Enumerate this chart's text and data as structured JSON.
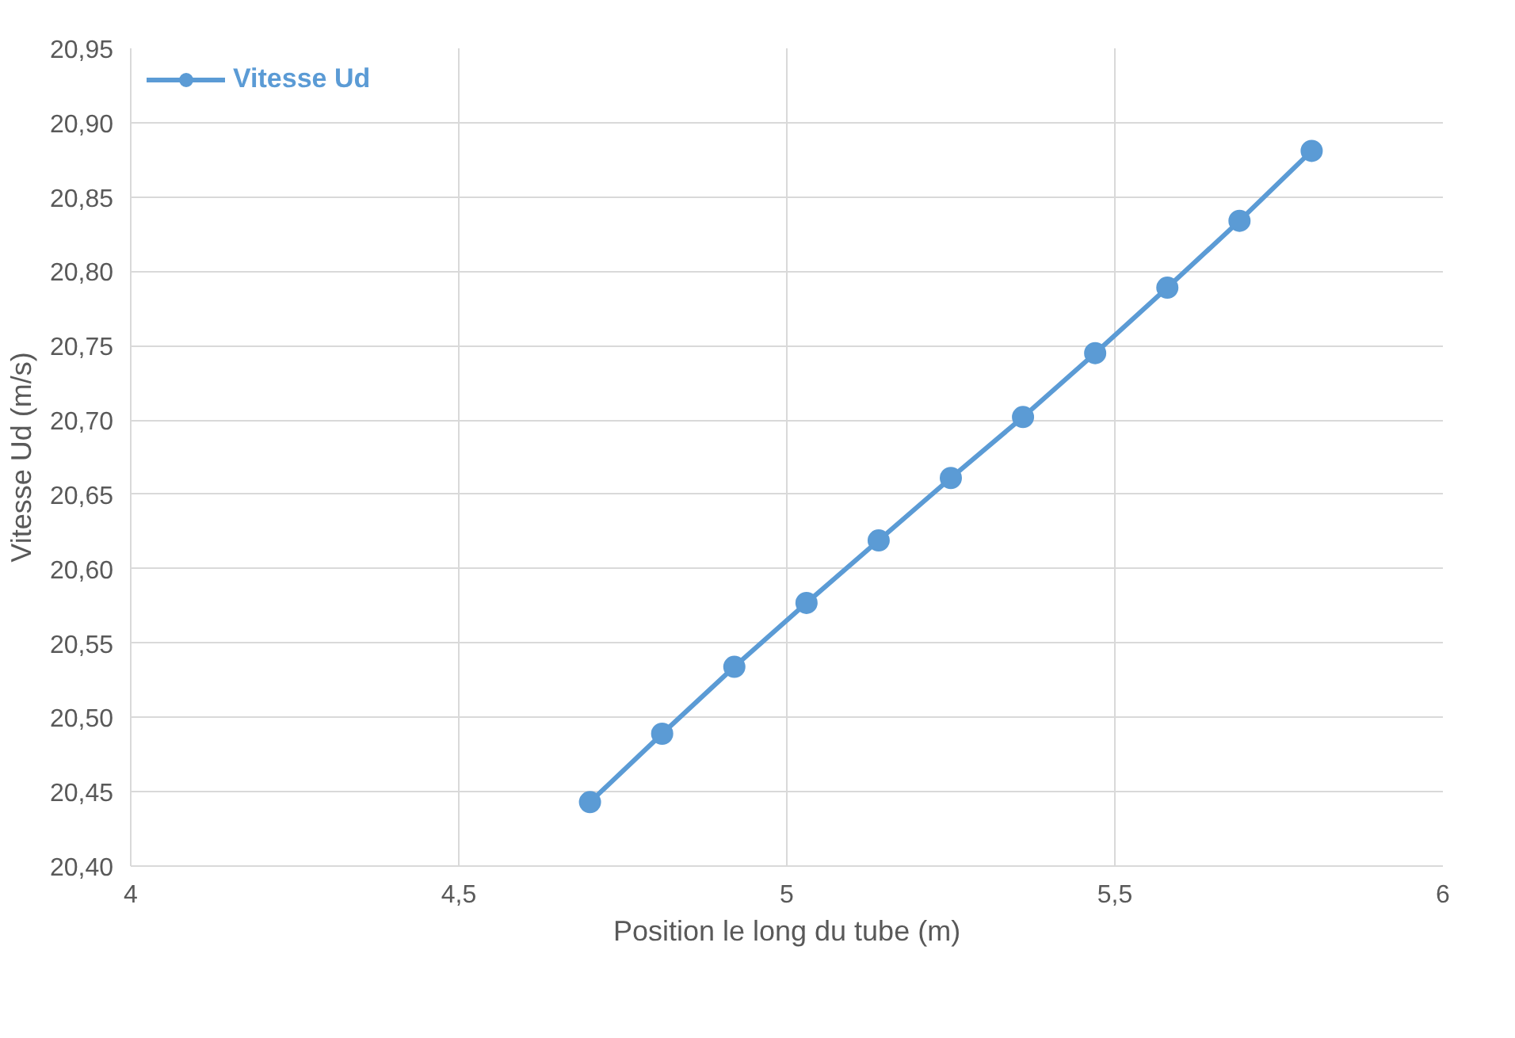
{
  "chart_data": {
    "type": "line",
    "xlabel": "Position le long du tube (m)",
    "ylabel": "Vitesse Ud (m/s)",
    "x": [
      4.7,
      4.81,
      4.92,
      5.03,
      5.14,
      5.25,
      5.36,
      5.47,
      5.58,
      5.69,
      5.8
    ],
    "series": [
      {
        "name": "Vitesse Ud",
        "color": "#5b9bd5",
        "values": [
          20.443,
          20.489,
          20.534,
          20.577,
          20.619,
          20.661,
          20.702,
          20.745,
          20.789,
          20.834,
          20.881
        ]
      }
    ],
    "xlim": [
      4,
      6
    ],
    "ylim": [
      20.4,
      20.95
    ],
    "xticks": [
      4,
      {
        "value": 4.5,
        "label": "4,5"
      },
      5,
      {
        "value": 5.5,
        "label": "5,5"
      },
      6
    ],
    "yticks": [
      {
        "value": 20.4,
        "label": "20,40"
      },
      {
        "value": 20.45,
        "label": "20,45"
      },
      {
        "value": 20.5,
        "label": "20,50"
      },
      {
        "value": 20.55,
        "label": "20,55"
      },
      {
        "value": 20.6,
        "label": "20,60"
      },
      {
        "value": 20.65,
        "label": "20,65"
      },
      {
        "value": 20.7,
        "label": "20,70"
      },
      {
        "value": 20.75,
        "label": "20,75"
      },
      {
        "value": 20.8,
        "label": "20,80"
      },
      {
        "value": 20.85,
        "label": "20,85"
      },
      {
        "value": 20.9,
        "label": "20,90"
      },
      {
        "value": 20.95,
        "label": "20,95"
      }
    ],
    "grid": true,
    "legend": "top left",
    "marker": "circle",
    "line_style": "solid"
  }
}
